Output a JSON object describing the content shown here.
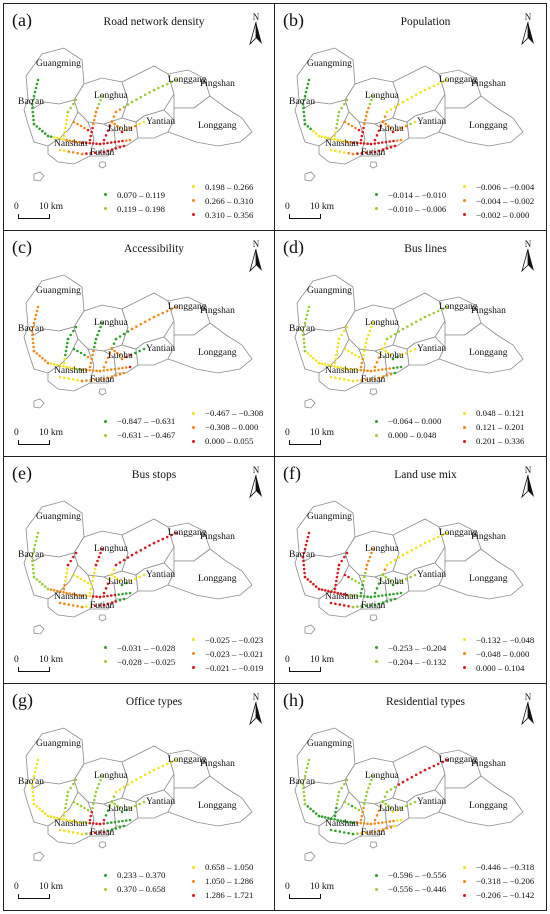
{
  "colors": {
    "green": "#2ea02a",
    "ygreen": "#9acd32",
    "yellow": "#f2e31a",
    "orange": "#f08a14",
    "red": "#d7191c",
    "boundary": "#8c8c8c"
  },
  "places": [
    "Guangming",
    "Bao'an",
    "Longhua",
    "Longgang",
    "Pingshan",
    "Luohu",
    "Yantian",
    "Nanshan",
    "Futian",
    "Longgang"
  ],
  "scale": {
    "zero": "0",
    "ten": "10 km"
  },
  "north": "N",
  "panels": [
    {
      "letter": "(a)",
      "title": "Road network density",
      "legend": [
        "0.070 – 0.119",
        "0.119 – 0.198",
        "0.198 – 0.266",
        "0.266 – 0.310",
        "0.310 – 0.356"
      ]
    },
    {
      "letter": "(b)",
      "title": "Population",
      "legend": [
        "−0.014 – −0.010",
        "−0.010 – −0.006",
        "−0.006 – −0.004",
        "−0.004 – −0.002",
        "−0.002 – 0.000"
      ]
    },
    {
      "letter": "(c)",
      "title": "Accessibility",
      "legend": [
        "−0.847 – −0.631",
        "−0.631 – −0.467",
        "−0.467 – −0.308",
        "−0.308 – 0.000",
        "0.000 – 0.055"
      ]
    },
    {
      "letter": "(d)",
      "title": "Bus lines",
      "legend": [
        "−0.064 – 0.000",
        "0.000 – 0.048",
        "0.048 – 0.121",
        "0.121 – 0.201",
        "0.201 – 0.336"
      ]
    },
    {
      "letter": "(e)",
      "title": "Bus stops",
      "legend": [
        "−0.031 – −0.028",
        "−0.028 – −0.025",
        "−0.025 – −0.023",
        "−0.023 – −0.021",
        "−0.021 – −0.019"
      ]
    },
    {
      "letter": "(f)",
      "title": "Land use mix",
      "legend": [
        "−0.253 – −0.204",
        "−0.204 – −0.132",
        "−0.132 – −0.048",
        "−0.048 – 0.000",
        "0.000 – 0.104"
      ]
    },
    {
      "letter": "(g)",
      "title": "Office types",
      "legend": [
        "0.233 – 0.370",
        "0.370 – 0.658",
        "0.658 – 1.050",
        "1.050 – 1.286",
        "1.286 – 1.721"
      ]
    },
    {
      "letter": "(h)",
      "title": "Residential types",
      "legend": [
        "−0.596 – −0.556",
        "−0.556 – −0.446",
        "−0.446 – −0.318",
        "−0.318 – −0.206",
        "−0.206 – −0.142"
      ]
    }
  ]
}
